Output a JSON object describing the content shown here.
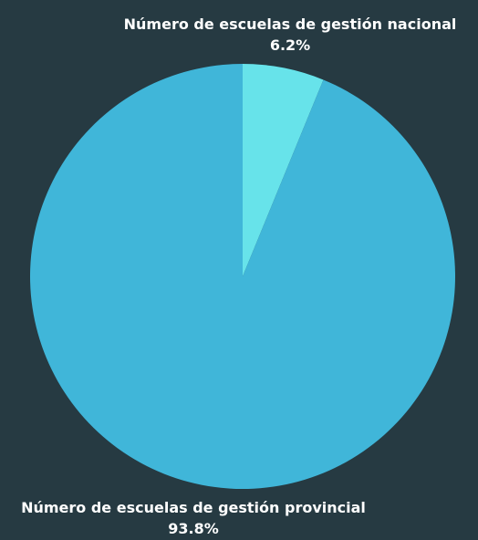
{
  "chart_data": {
    "type": "pie",
    "start_angle_deg": 0,
    "direction": "clockwise",
    "slices": [
      {
        "name": "Número de escuelas de gestión nacional",
        "value": 6.2,
        "value_label": "6.2%",
        "color": "#67e3ea"
      },
      {
        "name": "Número de escuelas de gestión provincial",
        "value": 93.8,
        "value_label": "93.8%",
        "color": "#40b6d9"
      }
    ]
  },
  "colors": {
    "background": "#263a42",
    "label_text": "#ffffff"
  }
}
